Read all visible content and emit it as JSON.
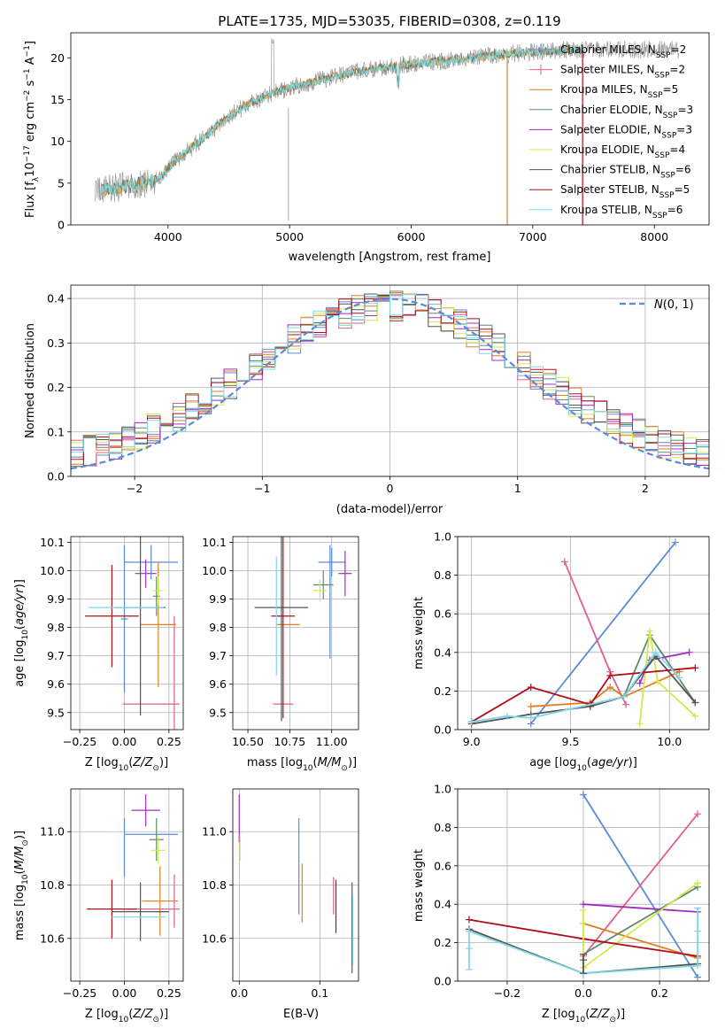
{
  "title": "PLATE=1735, MJD=53035, FIBERID=0308, z=0.119",
  "colors": {
    "chabrier_miles": "#5b8bd6",
    "salpeter_miles": "#e0608a",
    "kroupa_miles": "#e07f20",
    "chabrier_elodie": "#5d8b6b",
    "salpeter_elodie": "#a02cc0",
    "kroupa_elodie": "#d4e84a",
    "chabrier_stelib": "#555555",
    "salpeter_stelib": "#b00e1a",
    "kroupa_stelib": "#7fd8e8",
    "normal": "#5b8bd6"
  },
  "chart_data": [
    {
      "panel": "spectrum",
      "type": "line",
      "xlabel": "wavelength [Angstrom, rest frame]",
      "ylabel": "Flux [f_λ 10^-17 erg cm^-2 s^-1 A^-1]",
      "xlim": [
        3200,
        8450
      ],
      "ylim": [
        0,
        23
      ],
      "xticks": [
        "4000",
        "5000",
        "6000",
        "7000",
        "8000"
      ],
      "yticks": [
        "0",
        "5",
        "10",
        "15",
        "20"
      ],
      "legend_position": "right",
      "legend": [
        {
          "key": "chabrier_miles",
          "text": "Chabrier MILES, N",
          "sub": "SSP",
          "tail": "=2"
        },
        {
          "key": "salpeter_miles",
          "text": "Salpeter MILES, N",
          "sub": "SSP",
          "tail": "=2"
        },
        {
          "key": "kroupa_miles",
          "text": "Kroupa MILES, N",
          "sub": "SSP",
          "tail": "=5"
        },
        {
          "key": "chabrier_elodie",
          "text": "Chabrier ELODIE, N",
          "sub": "SSP",
          "tail": "=3"
        },
        {
          "key": "salpeter_elodie",
          "text": "Salpeter ELODIE, N",
          "sub": "SSP",
          "tail": "=3"
        },
        {
          "key": "kroupa_elodie",
          "text": "Kroupa ELODIE, N",
          "sub": "SSP",
          "tail": "=4"
        },
        {
          "key": "chabrier_stelib",
          "text": "Chabrier STELIB, N",
          "sub": "SSP",
          "tail": "=6"
        },
        {
          "key": "salpeter_stelib",
          "text": "Salpeter STELIB, N",
          "sub": "SSP",
          "tail": "=5"
        },
        {
          "key": "kroupa_stelib",
          "text": "Kroupa STELIB, N",
          "sub": "SSP",
          "tail": "=6"
        }
      ],
      "continuum": {
        "x": [
          3400,
          3600,
          3800,
          3900,
          4000,
          4100,
          4300,
          4500,
          4700,
          4900,
          5100,
          5300,
          5500,
          5700,
          5900,
          6100,
          6300,
          6500,
          6700,
          6900,
          7100,
          7400
        ],
        "y": [
          4.2,
          4.5,
          5.0,
          5.3,
          6.8,
          8.2,
          10.5,
          13.0,
          14.8,
          16.0,
          16.8,
          17.5,
          18.2,
          18.7,
          19.1,
          19.4,
          19.7,
          20.0,
          20.3,
          20.6,
          20.8,
          21.0
        ]
      },
      "data_x_range": [
        3400,
        8200
      ],
      "model_x_range": [
        3450,
        7420
      ]
    },
    {
      "panel": "residuals",
      "type": "histogram",
      "xlabel": "(data-model)/error",
      "ylabel": "Normed distribution",
      "xlim": [
        -2.5,
        2.5
      ],
      "ylim": [
        0,
        0.43
      ],
      "xticks": [
        "−2",
        "−1",
        "0",
        "1",
        "2"
      ],
      "yticks": [
        "0.0",
        "0.1",
        "0.2",
        "0.3",
        "0.4"
      ],
      "legend": "N(0,1)",
      "bin_width": 0.1
    },
    {
      "panel": "age_vs_Z",
      "type": "scatter",
      "xlabel": "Z [log10(Z/Z⊙)]",
      "ylabel": "age  [log10(age/yr)]",
      "xlim": [
        -0.3,
        0.33
      ],
      "ylim": [
        9.44,
        10.12
      ],
      "xticks": [
        "−0.25",
        "0.00",
        "0.25"
      ],
      "yticks": [
        "9.5",
        "9.6",
        "9.7",
        "9.8",
        "9.9",
        "10.0",
        "10.1"
      ],
      "points": [
        {
          "key": "chabrier_miles",
          "x": 0.15,
          "xerr": 0.15,
          "y": 10.03,
          "yerr": 0.06
        },
        {
          "key": "chabrier_miles",
          "x": 0.0,
          "xerr": 0.02,
          "y": 9.83,
          "yerr": 0.26
        },
        {
          "key": "salpeter_miles",
          "x": 0.15,
          "xerr": 0.16,
          "y": 9.53,
          "yerr": 0.0
        },
        {
          "key": "salpeter_miles",
          "x": 0.28,
          "xerr": 0.0,
          "y": 9.5,
          "yerr": 0.34
        },
        {
          "key": "kroupa_miles",
          "x": 0.19,
          "xerr": 0.1,
          "y": 9.81,
          "yerr": 0.22
        },
        {
          "key": "chabrier_elodie",
          "x": 0.18,
          "xerr": 0.02,
          "y": 9.91,
          "yerr": 0.07
        },
        {
          "key": "salpeter_elodie",
          "x": 0.12,
          "xerr": 0.06,
          "y": 9.99,
          "yerr": 0.05
        },
        {
          "key": "kroupa_elodie",
          "x": 0.19,
          "xerr": 0.03,
          "y": 9.93,
          "yerr": 0.05
        },
        {
          "key": "chabrier_stelib",
          "x": 0.09,
          "xerr": 0.14,
          "y": 9.87,
          "yerr": 0.38
        },
        {
          "key": "salpeter_stelib",
          "x": -0.07,
          "xerr": 0.15,
          "y": 9.84,
          "yerr": 0.18
        },
        {
          "key": "kroupa_stelib",
          "x": 0.01,
          "xerr": 0.21,
          "y": 9.87,
          "yerr": 0.0
        }
      ]
    },
    {
      "panel": "age_vs_mass",
      "type": "scatter",
      "xlabel": "mass [log10(M/M⊙)]",
      "ylabel": "",
      "xlim": [
        10.41,
        11.16
      ],
      "ylim": [
        9.44,
        10.12
      ],
      "xticks": [
        "10.50",
        "10.75",
        "11.00"
      ],
      "yticks": [
        "9.5",
        "9.6",
        "9.7",
        "9.8",
        "9.9",
        "10.0",
        "10.1"
      ],
      "points": [
        {
          "key": "chabrier_miles",
          "x": 11.0,
          "xerr": 0.08,
          "y": 10.03,
          "yerr": 0.05
        },
        {
          "key": "chabrier_miles",
          "x": 10.99,
          "xerr": 0.0,
          "y": 9.89,
          "yerr": 0.2
        },
        {
          "key": "salpeter_miles",
          "x": 10.71,
          "xerr": 0.06,
          "y": 9.53,
          "yerr": 0.0
        },
        {
          "key": "kroupa_miles",
          "x": 10.74,
          "xerr": 0.07,
          "y": 9.81,
          "yerr": 0.0
        },
        {
          "key": "chabrier_elodie",
          "x": 10.95,
          "xerr": 0.06,
          "y": 9.95,
          "yerr": 0.05
        },
        {
          "key": "salpeter_elodie",
          "x": 11.08,
          "xerr": 0.04,
          "y": 9.99,
          "yerr": 0.08
        },
        {
          "key": "kroupa_elodie",
          "x": 10.93,
          "xerr": 0.04,
          "y": 9.93,
          "yerr": 0.04
        },
        {
          "key": "chabrier_stelib",
          "x": 10.7,
          "xerr": 0.16,
          "y": 9.87,
          "yerr": 0.4
        },
        {
          "key": "salpeter_stelib",
          "x": 10.71,
          "xerr": 0.07,
          "y": 9.84,
          "yerr": 0.36
        },
        {
          "key": "kroupa_stelib",
          "x": 10.67,
          "xerr": 0.0,
          "y": 9.84,
          "yerr": 0.21
        }
      ]
    },
    {
      "panel": "weight_vs_age",
      "type": "line",
      "xlabel": "age  [log10(age/yr)]",
      "ylabel": "mass weight",
      "xlim": [
        8.93,
        10.2
      ],
      "ylim": [
        0,
        1
      ],
      "xticks": [
        "9.0",
        "9.5",
        "10.0"
      ],
      "yticks": [
        "0.0",
        "0.2",
        "0.4",
        "0.6",
        "0.8",
        "1.0"
      ],
      "series": [
        {
          "key": "chabrier_miles",
          "x": [
            9.3,
            10.03
          ],
          "y": [
            0.03,
            0.97
          ]
        },
        {
          "key": "salpeter_miles",
          "x": [
            9.47,
            9.7,
            9.78
          ],
          "y": [
            0.87,
            0.3,
            0.13
          ]
        },
        {
          "key": "kroupa_miles",
          "x": [
            9.3,
            9.6,
            9.7,
            9.77,
            10.05
          ],
          "y": [
            0.12,
            0.14,
            0.22,
            0.17,
            0.3
          ]
        },
        {
          "key": "chabrier_elodie",
          "x": [
            9.6,
            9.77,
            9.9,
            10.13
          ],
          "y": [
            0.13,
            0.17,
            0.49,
            0.14
          ]
        },
        {
          "key": "salpeter_elodie",
          "x": [
            9.85,
            9.9,
            10.1
          ],
          "y": [
            0.24,
            0.36,
            0.4
          ]
        },
        {
          "key": "kroupa_elodie",
          "x": [
            9.85,
            9.9,
            9.94,
            10.13
          ],
          "y": [
            0.03,
            0.51,
            0.25,
            0.07
          ]
        },
        {
          "key": "chabrier_stelib",
          "x": [
            9.0,
            9.3,
            9.6,
            9.77,
            9.93,
            10.13
          ],
          "y": [
            0.03,
            0.08,
            0.12,
            0.17,
            0.38,
            0.14
          ]
        },
        {
          "key": "salpeter_stelib",
          "x": [
            9.0,
            9.3,
            9.6,
            9.7,
            10.13
          ],
          "y": [
            0.04,
            0.22,
            0.13,
            0.28,
            0.32
          ]
        },
        {
          "key": "kroupa_stelib",
          "x": [
            9.0,
            9.18,
            9.3,
            9.77,
            9.93,
            10.05
          ],
          "y": [
            0.04,
            0.07,
            0.06,
            0.17,
            0.4,
            0.27
          ]
        }
      ]
    },
    {
      "panel": "mass_vs_Z",
      "type": "scatter",
      "xlabel": "Z [log10(Z/Z⊙)]",
      "ylabel": "mass [log10(M/M⊙)]",
      "xlim": [
        -0.3,
        0.33
      ],
      "ylim": [
        10.44,
        11.16
      ],
      "xticks": [
        "−0.25",
        "0.00",
        "0.25"
      ],
      "yticks": [
        "10.6",
        "10.8",
        "11.0"
      ],
      "points": [
        {
          "key": "chabrier_miles",
          "x": 0.15,
          "xerr": 0.15,
          "y": 10.99,
          "yerr": 0.0
        },
        {
          "key": "chabrier_miles",
          "x": 0.0,
          "xerr": 0.0,
          "y": 10.94,
          "yerr": 0.11
        },
        {
          "key": "salpeter_miles",
          "x": 0.15,
          "xerr": 0.16,
          "y": 10.71,
          "yerr": 0.0
        },
        {
          "key": "salpeter_miles",
          "x": 0.28,
          "xerr": 0.0,
          "y": 10.74,
          "yerr": 0.1
        },
        {
          "key": "kroupa_miles",
          "x": 0.2,
          "xerr": 0.1,
          "y": 10.74,
          "yerr": 0.13
        },
        {
          "key": "chabrier_elodie",
          "x": 0.18,
          "xerr": 0.04,
          "y": 10.97,
          "yerr": 0.08
        },
        {
          "key": "salpeter_elodie",
          "x": 0.12,
          "xerr": 0.08,
          "y": 11.08,
          "yerr": 0.06
        },
        {
          "key": "kroupa_elodie",
          "x": 0.19,
          "xerr": 0.04,
          "y": 10.93,
          "yerr": 0.05
        },
        {
          "key": "chabrier_stelib",
          "x": 0.09,
          "xerr": 0.16,
          "y": 10.7,
          "yerr": 0.11
        },
        {
          "key": "salpeter_stelib",
          "x": -0.07,
          "xerr": 0.14,
          "y": 10.71,
          "yerr": 0.11
        },
        {
          "key": "kroupa_stelib",
          "x": 0.08,
          "xerr": 0.15,
          "y": 10.68,
          "yerr": 0.0
        }
      ]
    },
    {
      "panel": "mass_vs_ebv",
      "type": "scatter",
      "xlabel": "E(B-V)",
      "ylabel": "",
      "xlim": [
        -0.008,
        0.148
      ],
      "ylim": [
        10.44,
        11.16
      ],
      "xticks": [
        "0.0",
        "0.1"
      ],
      "yticks": [
        "10.6",
        "10.8",
        "11.0"
      ],
      "points": [
        {
          "key": "salpeter_elodie",
          "x": 0.0,
          "yerr": 0.09,
          "y": 11.05
        },
        {
          "key": "kroupa_elodie",
          "x": 0.001,
          "yerr": 0.05,
          "y": 10.94
        },
        {
          "key": "chabrier_miles",
          "x": 0.074,
          "yerr": 0.18,
          "y": 10.87
        },
        {
          "key": "kroupa_miles",
          "x": 0.078,
          "yerr": 0.11,
          "y": 10.77
        },
        {
          "key": "salpeter_miles",
          "x": 0.117,
          "yerr": 0.07,
          "y": 10.76
        },
        {
          "key": "salpeter_stelib",
          "x": 0.12,
          "yerr": 0.1,
          "y": 10.72
        },
        {
          "key": "chabrier_stelib",
          "x": 0.14,
          "yerr": 0.17,
          "y": 10.64
        },
        {
          "key": "kroupa_stelib",
          "x": 0.141,
          "yerr": 0.13,
          "y": 10.63
        }
      ]
    },
    {
      "panel": "weight_vs_Z",
      "type": "line",
      "xlabel": "Z [log10(Z/Z⊙)]",
      "ylabel": "mass weight",
      "xlim": [
        -0.33,
        0.33
      ],
      "ylim": [
        0,
        1
      ],
      "xticks": [
        "−0.2",
        "0.0",
        "0.2"
      ],
      "yticks": [
        "0.0",
        "0.2",
        "0.4",
        "0.6",
        "0.8",
        "1.0"
      ],
      "series": [
        {
          "key": "chabrier_miles",
          "x": [
            0.0,
            0.3
          ],
          "y": [
            0.97,
            0.02
          ]
        },
        {
          "key": "salpeter_miles",
          "x": [
            0.0,
            0.3
          ],
          "y": [
            0.13,
            0.87
          ]
        },
        {
          "key": "kroupa_miles",
          "x": [
            0.0,
            0.3
          ],
          "y": [
            0.3,
            0.12
          ]
        },
        {
          "key": "chabrier_elodie",
          "x": [
            0.0,
            0.3
          ],
          "y": [
            0.14,
            0.49
          ]
        },
        {
          "key": "salpeter_elodie",
          "x": [
            0.0,
            0.3
          ],
          "y": [
            0.4,
            0.36
          ]
        },
        {
          "key": "kroupa_elodie",
          "x": [
            0.0,
            0.3
          ],
          "y": [
            0.07,
            0.51
          ]
        },
        {
          "key": "chabrier_stelib",
          "x": [
            -0.3,
            0.0,
            0.3
          ],
          "y": [
            0.27,
            0.04,
            0.09
          ]
        },
        {
          "key": "salpeter_stelib",
          "x": [
            -0.3,
            0.0,
            0.3
          ],
          "y": [
            0.32,
            0.22,
            0.13
          ]
        },
        {
          "key": "kroupa_stelib",
          "x": [
            -0.3,
            0.0,
            0.3
          ],
          "y": [
            0.26,
            0.04,
            0.08
          ]
        }
      ],
      "vertical_stacks": [
        {
          "key": "kroupa_stelib",
          "x": -0.3,
          "y": [
            0.06,
            0.17,
            0.26
          ]
        },
        {
          "key": "kroupa_elodie",
          "x": 0.0,
          "y": [
            0.07,
            0.3,
            0.37
          ]
        },
        {
          "key": "chabrier_stelib",
          "x": 0.0,
          "y": [
            0.04,
            0.11,
            0.14
          ]
        },
        {
          "key": "kroupa_stelib",
          "x": 0.3,
          "y": [
            0.08,
            0.26,
            0.38
          ]
        }
      ]
    }
  ]
}
